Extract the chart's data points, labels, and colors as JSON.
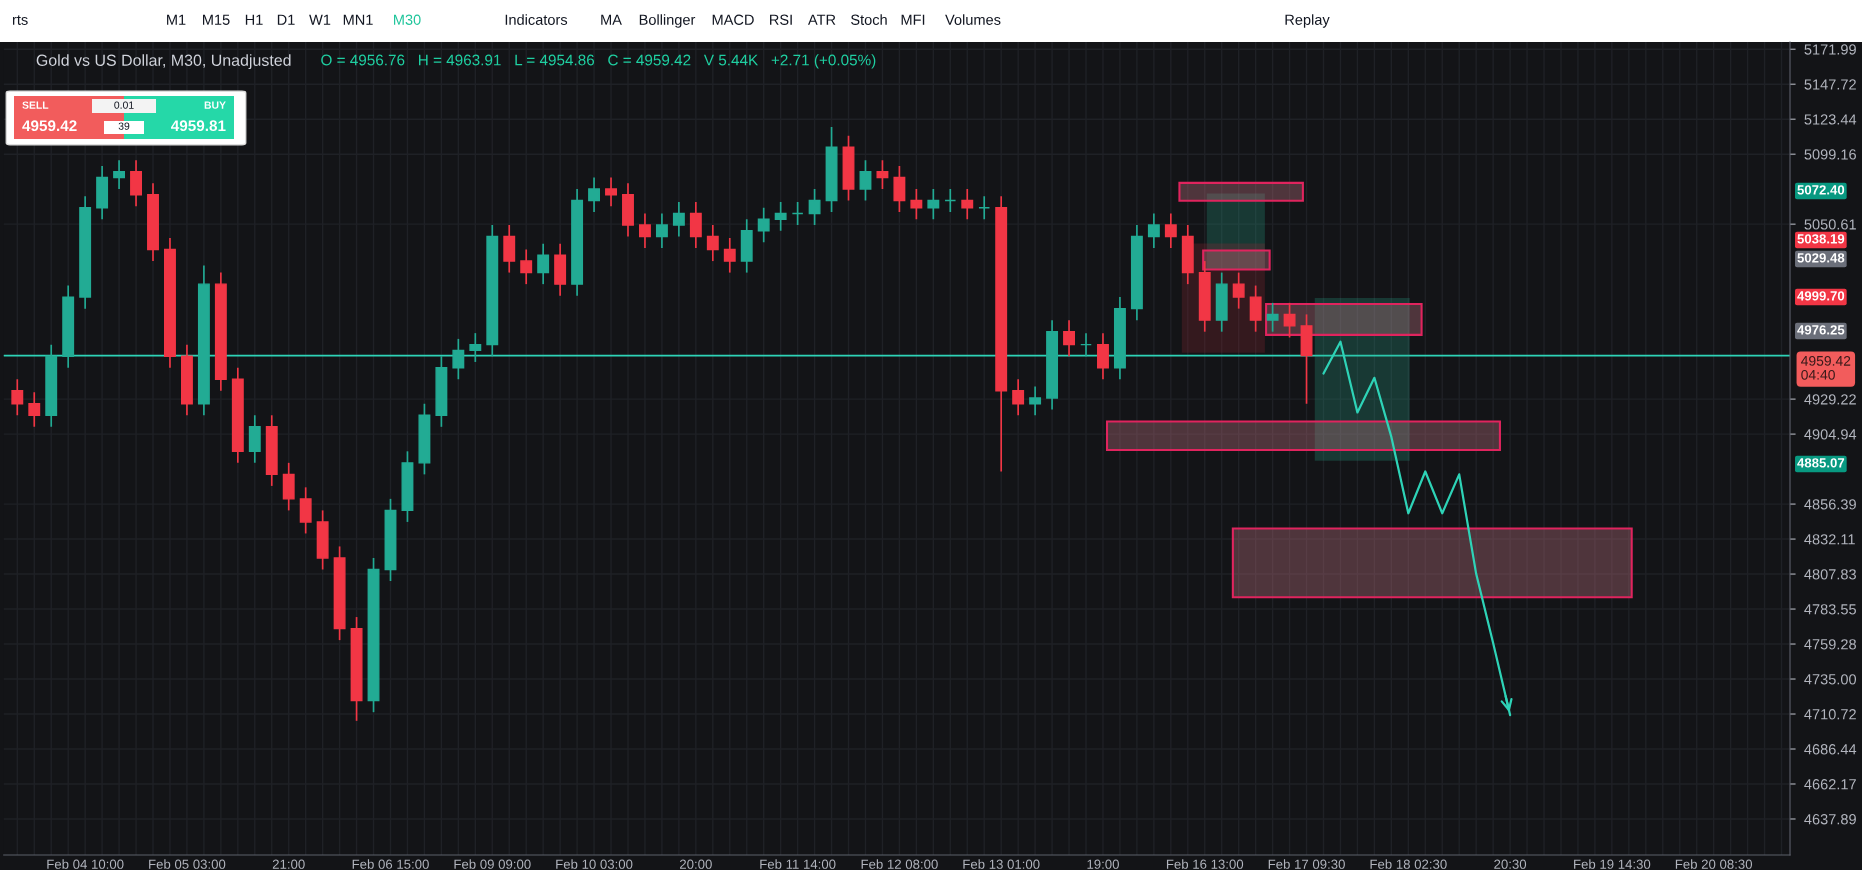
{
  "chart_data": {
    "type": "candlestick",
    "title": "Gold vs US Dollar, M30, Unadjusted",
    "subtitle": "O = 4956.76   H = 4963.91   L = 4954.86   C = 4959.42   V 5.44K   +2.71 (+0.05%)",
    "categories": [
      null,
      null,
      null,
      null,
      "Feb 04 10:00",
      null,
      null,
      null,
      null,
      null,
      "Feb 05 03:00",
      null,
      null,
      null,
      null,
      null,
      "21:00",
      null,
      null,
      null,
      null,
      null,
      "Feb 06 15:00",
      null,
      null,
      null,
      null,
      null,
      "Feb 09 09:00",
      null,
      null,
      null,
      null,
      null,
      "Feb 10 03:00",
      null,
      null,
      null,
      null,
      null,
      "20:00",
      null,
      null,
      null,
      null,
      null,
      "Feb 11 14:00",
      null,
      null,
      null,
      null,
      null,
      "Feb 12 08:00",
      null,
      null,
      null,
      null,
      null,
      "Feb 13 01:00",
      null,
      null,
      null,
      null,
      null,
      "19:00",
      null,
      null,
      null,
      null,
      null,
      "Feb 16 13:00",
      null,
      null,
      null,
      null,
      null,
      "Feb 17 09:30",
      null,
      null,
      null,
      null,
      null,
      "Feb 18 02:30",
      null,
      null,
      null,
      null,
      null,
      "20:30",
      null,
      null,
      null,
      null,
      null,
      "Feb 19 14:30",
      null,
      null,
      null,
      null,
      null,
      "Feb 20 08:30",
      null,
      null,
      null,
      null
    ],
    "ohlc": [
      [
        4935,
        4943,
        4918,
        4926
      ],
      [
        4926,
        4934,
        4910,
        4918
      ],
      [
        4918,
        4967,
        4910,
        4959
      ],
      [
        4959,
        5008,
        4951,
        5000
      ],
      [
        5000,
        5070,
        4992,
        5062
      ],
      [
        5062,
        5091,
        5054,
        5083
      ],
      [
        5083,
        5095,
        5075,
        5087
      ],
      [
        5087,
        5095,
        5063,
        5071
      ],
      [
        5071,
        5079,
        5025,
        5033
      ],
      [
        5033,
        5041,
        4951,
        4959
      ],
      [
        4959,
        4967,
        4918,
        4926
      ],
      [
        4926,
        5022,
        4918,
        5009
      ],
      [
        5009,
        5017,
        4935,
        4943
      ],
      [
        4943,
        4951,
        4885,
        4893
      ],
      [
        4893,
        4918,
        4885,
        4910
      ],
      [
        4910,
        4918,
        4869,
        4877
      ],
      [
        4877,
        4885,
        4852,
        4860
      ],
      [
        4860,
        4868,
        4836,
        4844
      ],
      [
        4844,
        4852,
        4811,
        4819
      ],
      [
        4819,
        4827,
        4762,
        4770
      ],
      [
        4770,
        4778,
        4706,
        4720
      ],
      [
        4720,
        4819,
        4712,
        4811
      ],
      [
        4811,
        4860,
        4803,
        4852
      ],
      [
        4852,
        4893,
        4844,
        4885
      ],
      [
        4885,
        4926,
        4877,
        4918
      ],
      [
        4918,
        4959,
        4910,
        4951
      ],
      [
        4951,
        4971,
        4943,
        4963
      ],
      [
        4963,
        4975,
        4955,
        4967
      ],
      [
        4967,
        5050,
        4959,
        5042
      ],
      [
        5042,
        5050,
        5017,
        5025
      ],
      [
        5025,
        5033,
        5009,
        5017
      ],
      [
        5017,
        5037,
        5009,
        5029
      ],
      [
        5029,
        5037,
        5001,
        5009
      ],
      [
        5009,
        5075,
        5001,
        5067
      ],
      [
        5067,
        5083,
        5059,
        5075
      ],
      [
        5075,
        5083,
        5063,
        5071
      ],
      [
        5071,
        5079,
        5042,
        5050
      ],
      [
        5050,
        5058,
        5034,
        5042
      ],
      [
        5042,
        5058,
        5034,
        5050
      ],
      [
        5050,
        5066,
        5042,
        5058
      ],
      [
        5058,
        5066,
        5034,
        5042
      ],
      [
        5042,
        5050,
        5025,
        5033
      ],
      [
        5033,
        5041,
        5017,
        5025
      ],
      [
        5025,
        5054,
        5017,
        5046
      ],
      [
        5046,
        5062,
        5038,
        5054
      ],
      [
        5054,
        5066,
        5046,
        5058
      ],
      [
        5058,
        5066,
        5050,
        5058
      ],
      [
        5058,
        5075,
        5050,
        5067
      ],
      [
        5067,
        5118,
        5059,
        5104
      ],
      [
        5104,
        5112,
        5067,
        5075
      ],
      [
        5075,
        5095,
        5067,
        5087
      ],
      [
        5087,
        5095,
        5075,
        5083
      ],
      [
        5083,
        5091,
        5059,
        5067
      ],
      [
        5067,
        5075,
        5054,
        5062
      ],
      [
        5062,
        5075,
        5054,
        5067
      ],
      [
        5067,
        5075,
        5059,
        5067
      ],
      [
        5067,
        5075,
        5054,
        5062
      ],
      [
        5062,
        5070,
        5054,
        5062
      ],
      [
        5062,
        5070,
        4879,
        4935
      ],
      [
        4935,
        4943,
        4918,
        4926
      ],
      [
        4926,
        4938,
        4918,
        4930
      ],
      [
        4930,
        4984,
        4922,
        4976
      ],
      [
        4976,
        4984,
        4959,
        4967
      ],
      [
        4967,
        4975,
        4959,
        4967
      ],
      [
        4967,
        4975,
        4943,
        4951
      ],
      [
        4951,
        5000,
        4943,
        4992
      ],
      [
        4992,
        5050,
        4984,
        5042
      ],
      [
        5042,
        5058,
        5034,
        5050
      ],
      [
        5050,
        5058,
        5034,
        5042
      ],
      [
        5042,
        5050,
        5009,
        5017
      ],
      [
        5017,
        5025,
        4976,
        4984
      ],
      [
        4984,
        5017,
        4976,
        5009
      ],
      [
        5009,
        5017,
        4992,
        5000
      ],
      [
        5000,
        5008,
        4976,
        4984
      ],
      [
        4984,
        4996,
        4976,
        4988
      ],
      [
        4988,
        4996,
        4972,
        4980
      ],
      [
        4980,
        4988,
        4926,
        4959.42
      ],
      null,
      null,
      null,
      null,
      null,
      null,
      null,
      null,
      null,
      null,
      null,
      null,
      null,
      null,
      null,
      null,
      null,
      null,
      null,
      null,
      null,
      null,
      null,
      null,
      null,
      null,
      null,
      null
    ],
    "colors": [
      "#f23645",
      "#f23645",
      "#22ab94",
      "#22ab94",
      "#22ab94",
      "#22ab94",
      "#22ab94",
      "#f23645",
      "#f23645",
      "#f23645",
      "#f23645",
      "#22ab94",
      "#f23645",
      "#f23645",
      "#22ab94",
      "#f23645",
      "#f23645",
      "#f23645",
      "#f23645",
      "#f23645",
      "#f23645",
      "#22ab94",
      "#22ab94",
      "#22ab94",
      "#22ab94",
      "#22ab94",
      "#22ab94",
      "#22ab94",
      "#22ab94",
      "#f23645",
      "#f23645",
      "#22ab94",
      "#f23645",
      "#22ab94",
      "#22ab94",
      "#f23645",
      "#f23645",
      "#f23645",
      "#22ab94",
      "#22ab94",
      "#f23645",
      "#f23645",
      "#f23645",
      "#22ab94",
      "#22ab94",
      "#22ab94",
      "#22ab94",
      "#22ab94",
      "#22ab94",
      "#f23645",
      "#22ab94",
      "#f23645",
      "#f23645",
      "#f23645",
      "#22ab94",
      "#22ab94",
      "#f23645",
      "#22ab94",
      "#f23645",
      "#f23645",
      "#22ab94",
      "#22ab94",
      "#f23645",
      "#22ab94",
      "#f23645",
      "#22ab94",
      "#22ab94",
      "#22ab94",
      "#f23645",
      "#f23645",
      "#f23645",
      "#22ab94",
      "#f23645",
      "#f23645",
      "#22ab94",
      "#f23645",
      "#f23645",
      null,
      null,
      null,
      null,
      null,
      null,
      null,
      null,
      null,
      null,
      null,
      null,
      null,
      null,
      null,
      null,
      null,
      null,
      null,
      null,
      null,
      null,
      null,
      null,
      null,
      null,
      null,
      null
    ],
    "ylim": [
      4612.9,
      5177
    ],
    "yticks": [
      5171.99,
      5147.72,
      5123.44,
      5099.16,
      5050.61,
      4929.22,
      4904.94,
      4856.39,
      4832.11,
      4807.83,
      4783.55,
      4759.28,
      {
        "value": 4735,
        "label": "4735.00"
      },
      4710.72,
      4686.44,
      4662.17,
      4637.89
    ],
    "grid": true,
    "ref_lines": [
      {
        "axis": "y",
        "value": 4959.42,
        "label": "4959.42\n04:40",
        "color": "#2ed3b7",
        "line_style": "solid"
      }
    ],
    "annotations": [
      "rts",
      "M1",
      "M15",
      "H1",
      "D1",
      "W1",
      "MN1",
      "M30",
      "Indicators",
      "MA",
      "Bollinger",
      "MACD",
      "RSI",
      "ATR",
      "Stoch",
      "MFI",
      "Volumes",
      "Replay",
      "SELL",
      "4959.42",
      "0.01",
      "39",
      "BUY",
      "4959.81",
      "5072.40",
      "5038.19",
      "5029.48",
      "4999.70",
      "4976.25",
      "4885.07"
    ],
    "series": [
      {
        "type": "line",
        "color": "#2ed3b7",
        "marker": "none",
        "values": [
          null,
          null,
          null,
          null,
          null,
          null,
          null,
          null,
          null,
          null,
          null,
          null,
          null,
          null,
          null,
          null,
          null,
          null,
          null,
          null,
          null,
          null,
          null,
          null,
          null,
          null,
          null,
          null,
          null,
          null,
          null,
          null,
          null,
          null,
          null,
          null,
          null,
          null,
          null,
          null,
          null,
          null,
          null,
          null,
          null,
          null,
          null,
          null,
          null,
          null,
          null,
          null,
          null,
          null,
          null,
          null,
          null,
          null,
          null,
          null,
          null,
          null,
          null,
          null,
          null,
          null,
          null,
          null,
          null,
          null,
          null,
          null,
          null,
          null,
          null,
          null,
          null,
          4947,
          4969,
          4920,
          4944,
          4903,
          4850,
          4879,
          4850,
          4877,
          4808,
          4760,
          4710,
          null,
          null,
          null,
          null,
          null,
          null,
          null,
          null,
          null,
          null,
          null,
          null,
          null,
          null,
          null,
          null
        ]
      }
    ]
  }
}
